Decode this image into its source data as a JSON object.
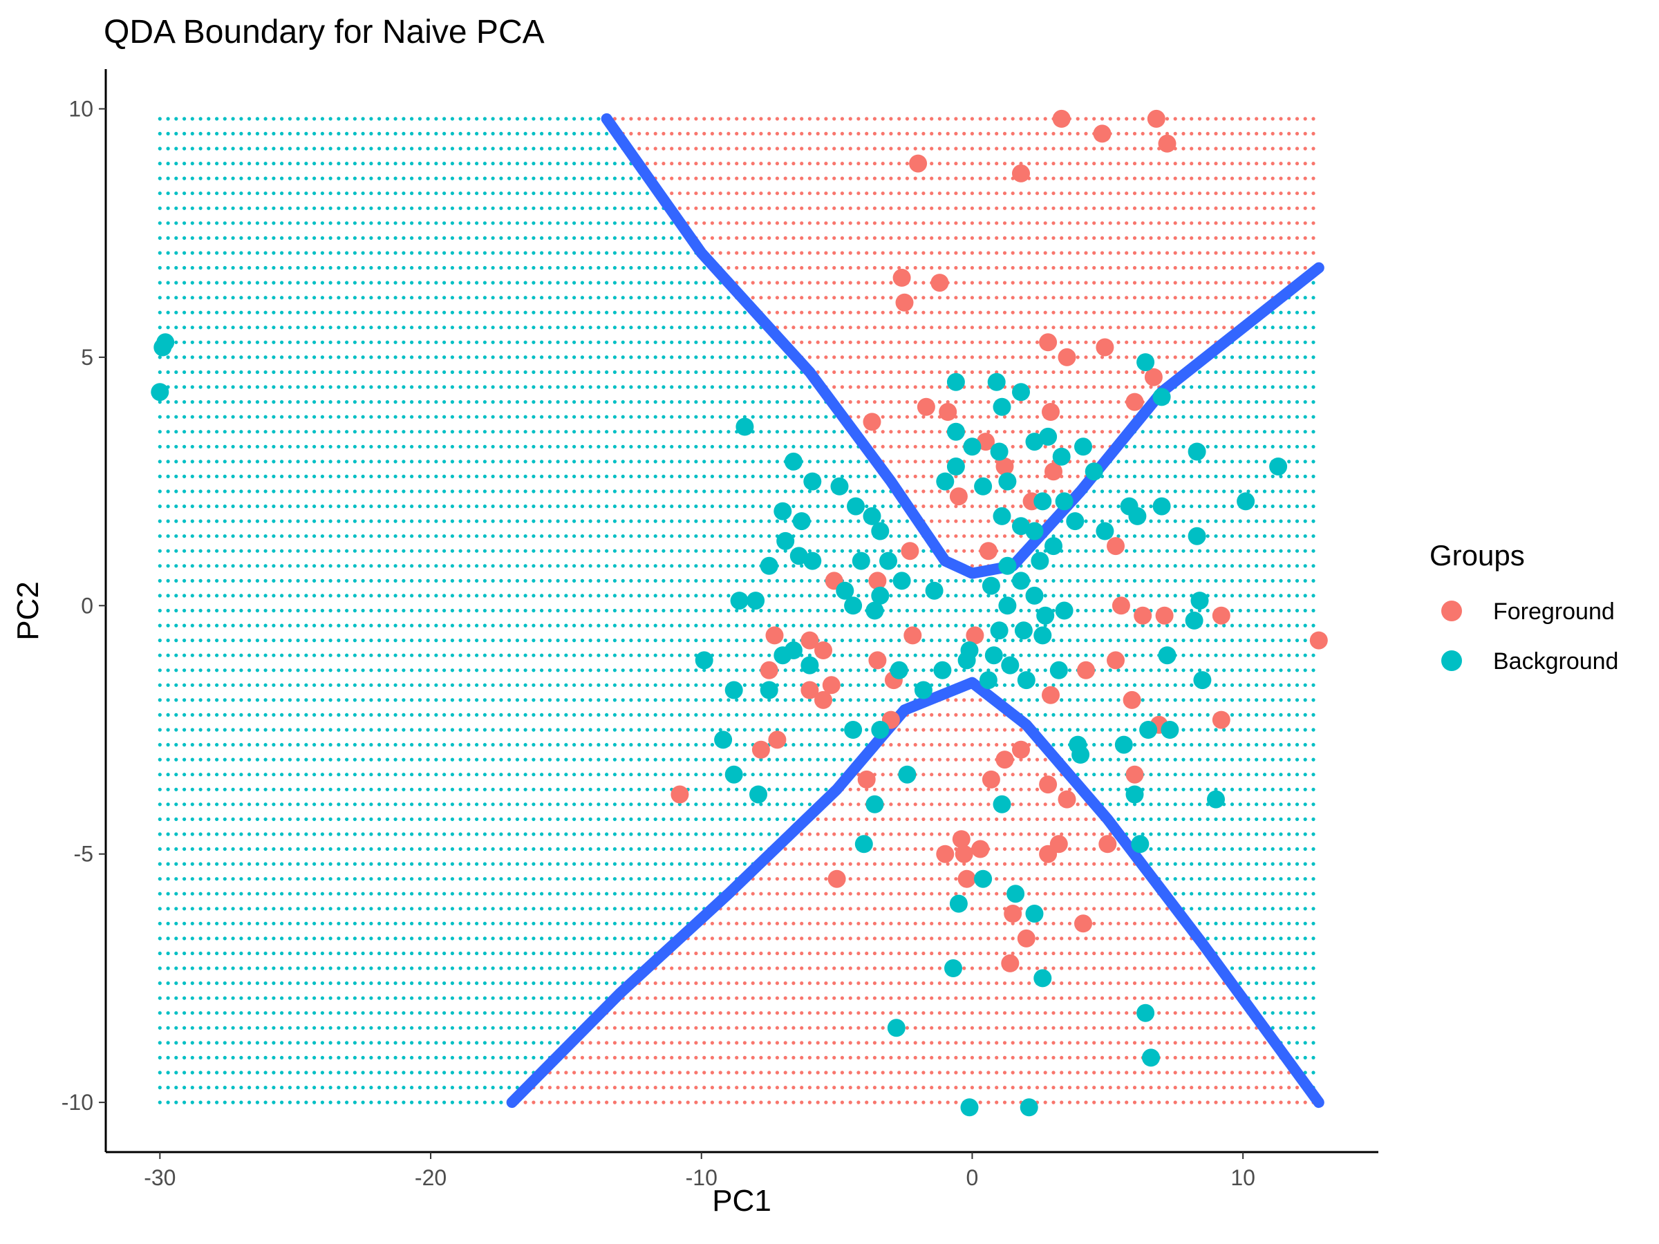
{
  "chart_data": {
    "type": "scatter",
    "title": "QDA Boundary for Naive PCA",
    "xlabel": "PC1",
    "ylabel": "PC2",
    "xlim": [
      -32,
      15
    ],
    "ylim": [
      -11,
      10.8
    ],
    "xticks": [
      -30,
      -20,
      -10,
      0,
      10
    ],
    "yticks": [
      -10,
      -5,
      0,
      5,
      10
    ],
    "xtick_labels": [
      "-30",
      "-20",
      "-10",
      "0",
      "10"
    ],
    "ytick_labels": [
      "-10",
      "-5",
      "0",
      "5",
      "10"
    ],
    "grid": false,
    "legend": {
      "title": "Groups",
      "position": "right",
      "entries": [
        {
          "label": "Foreground",
          "color": "#f8766d"
        },
        {
          "label": "Background",
          "color": "#00bfc4"
        }
      ]
    },
    "background_grid": {
      "x_range": [
        -30,
        12.8
      ],
      "y_range": [
        -10,
        9.8
      ],
      "step": 0.3,
      "rule": "QDA region: Foreground when |PC2| exceeds the boundary curve, Background otherwise"
    },
    "boundary": {
      "color": "#3366ff",
      "upper": [
        [
          -13.5,
          9.8
        ],
        [
          -10,
          7.1
        ],
        [
          -6,
          4.7
        ],
        [
          -3,
          2.5
        ],
        [
          -1,
          0.9
        ],
        [
          0,
          0.65
        ],
        [
          1.5,
          0.8
        ],
        [
          4,
          2.3
        ],
        [
          7,
          4.3
        ],
        [
          12.8,
          6.8
        ]
      ],
      "lower": [
        [
          -17,
          -10
        ],
        [
          -13,
          -7.8
        ],
        [
          -9,
          -5.8
        ],
        [
          -5,
          -3.7
        ],
        [
          -2.5,
          -2.1
        ],
        [
          0,
          -1.55
        ],
        [
          2,
          -2.4
        ],
        [
          5,
          -4.3
        ],
        [
          8.5,
          -6.8
        ],
        [
          12.8,
          -10
        ]
      ]
    },
    "series": [
      {
        "name": "Foreground",
        "color": "#f8766d",
        "points": [
          [
            3.3,
            9.8
          ],
          [
            4.8,
            9.5
          ],
          [
            6.8,
            9.8
          ],
          [
            7.2,
            9.3
          ],
          [
            -2,
            8.9
          ],
          [
            1.8,
            8.7
          ],
          [
            -2.6,
            6.6
          ],
          [
            -2.5,
            6.1
          ],
          [
            -1.2,
            6.5
          ],
          [
            3.5,
            5.0
          ],
          [
            2.8,
            5.3
          ],
          [
            4.9,
            5.2
          ],
          [
            6.7,
            4.6
          ],
          [
            -3.7,
            3.7
          ],
          [
            -1.7,
            4.0
          ],
          [
            -0.9,
            3.9
          ],
          [
            2.9,
            3.9
          ],
          [
            6.0,
            4.1
          ],
          [
            0.5,
            3.3
          ],
          [
            1.2,
            2.8
          ],
          [
            3.0,
            2.7
          ],
          [
            2.2,
            2.1
          ],
          [
            -0.5,
            2.2
          ],
          [
            5.3,
            1.2
          ],
          [
            -2.3,
            1.1
          ],
          [
            0.6,
            1.1
          ],
          [
            -3.5,
            0.5
          ],
          [
            -5.1,
            0.5
          ],
          [
            0.1,
            -0.6
          ],
          [
            5.5,
            0.0
          ],
          [
            6.3,
            -0.2
          ],
          [
            7.1,
            -0.2
          ],
          [
            9.2,
            -0.2
          ],
          [
            -6.0,
            -0.7
          ],
          [
            -7.3,
            -0.6
          ],
          [
            -5.5,
            -0.9
          ],
          [
            -7.5,
            -1.3
          ],
          [
            -2.9,
            -1.5
          ],
          [
            -5.2,
            -1.6
          ],
          [
            -6.0,
            -1.7
          ],
          [
            -5.5,
            -1.9
          ],
          [
            -3.5,
            -1.1
          ],
          [
            -2.2,
            -0.6
          ],
          [
            4.2,
            -1.3
          ],
          [
            5.3,
            -1.1
          ],
          [
            5.9,
            -1.9
          ],
          [
            9.2,
            -2.3
          ],
          [
            -3.0,
            -2.3
          ],
          [
            -7.2,
            -2.7
          ],
          [
            -7.8,
            -2.9
          ],
          [
            -10.8,
            -3.8
          ],
          [
            -3.9,
            -3.5
          ],
          [
            2.9,
            -1.8
          ],
          [
            1.8,
            -2.9
          ],
          [
            1.2,
            -3.1
          ],
          [
            0.7,
            -3.5
          ],
          [
            2.8,
            -3.6
          ],
          [
            3.5,
            -3.9
          ],
          [
            -5.0,
            -5.5
          ],
          [
            -1.0,
            -5.0
          ],
          [
            -0.4,
            -4.7
          ],
          [
            -0.3,
            -5.0
          ],
          [
            0.3,
            -4.9
          ],
          [
            2.8,
            -5.0
          ],
          [
            3.2,
            -4.8
          ],
          [
            5.0,
            -4.8
          ],
          [
            -0.2,
            -5.5
          ],
          [
            1.5,
            -6.2
          ],
          [
            2.0,
            -6.7
          ],
          [
            4.1,
            -6.4
          ],
          [
            1.4,
            -7.2
          ],
          [
            12.8,
            -0.7
          ],
          [
            6.9,
            -2.4
          ],
          [
            6.0,
            -3.4
          ]
        ]
      },
      {
        "name": "Background",
        "color": "#00bfc4",
        "points": [
          [
            -29.8,
            5.3
          ],
          [
            -29.9,
            5.2
          ],
          [
            -30.0,
            4.3
          ],
          [
            -8.4,
            3.6
          ],
          [
            6.4,
            4.9
          ],
          [
            7.0,
            4.2
          ],
          [
            -6.6,
            2.9
          ],
          [
            -5.9,
            2.5
          ],
          [
            -4.9,
            2.4
          ],
          [
            -7.0,
            1.9
          ],
          [
            -6.3,
            1.7
          ],
          [
            -6.9,
            1.3
          ],
          [
            -6.4,
            1.0
          ],
          [
            -5.9,
            0.9
          ],
          [
            -7.5,
            0.8
          ],
          [
            -4.3,
            2.0
          ],
          [
            -3.7,
            1.8
          ],
          [
            -3.4,
            1.5
          ],
          [
            -4.1,
            0.9
          ],
          [
            -3.1,
            0.9
          ],
          [
            -2.6,
            0.5
          ],
          [
            -4.7,
            0.3
          ],
          [
            -3.4,
            0.2
          ],
          [
            -4.4,
            0.0
          ],
          [
            -3.6,
            -0.1
          ],
          [
            -1.4,
            0.3
          ],
          [
            -0.6,
            4.5
          ],
          [
            0.9,
            4.5
          ],
          [
            1.8,
            4.3
          ],
          [
            1.1,
            4.0
          ],
          [
            -0.6,
            3.5
          ],
          [
            0.0,
            3.2
          ],
          [
            1.0,
            3.1
          ],
          [
            2.3,
            3.3
          ],
          [
            2.8,
            3.4
          ],
          [
            3.3,
            3.0
          ],
          [
            4.1,
            3.2
          ],
          [
            4.5,
            2.7
          ],
          [
            -0.6,
            2.8
          ],
          [
            -1.0,
            2.5
          ],
          [
            0.4,
            2.4
          ],
          [
            1.3,
            2.5
          ],
          [
            2.6,
            2.1
          ],
          [
            3.4,
            2.1
          ],
          [
            1.1,
            1.8
          ],
          [
            1.8,
            1.6
          ],
          [
            2.3,
            1.5
          ],
          [
            3.0,
            1.2
          ],
          [
            3.8,
            1.7
          ],
          [
            4.9,
            1.5
          ],
          [
            6.1,
            1.8
          ],
          [
            7.0,
            2.0
          ],
          [
            5.8,
            2.0
          ],
          [
            8.3,
            3.1
          ],
          [
            8.3,
            1.4
          ],
          [
            10.1,
            2.1
          ],
          [
            11.3,
            2.8
          ],
          [
            1.3,
            0.8
          ],
          [
            2.5,
            0.9
          ],
          [
            1.8,
            0.5
          ],
          [
            0.7,
            0.4
          ],
          [
            1.3,
            0.0
          ],
          [
            2.3,
            0.2
          ],
          [
            2.7,
            -0.2
          ],
          [
            3.4,
            -0.1
          ],
          [
            1.0,
            -0.5
          ],
          [
            1.9,
            -0.5
          ],
          [
            2.6,
            -0.6
          ],
          [
            -0.1,
            -0.9
          ],
          [
            0.8,
            -1.0
          ],
          [
            1.4,
            -1.2
          ],
          [
            0.6,
            -1.5
          ],
          [
            2.0,
            -1.5
          ],
          [
            3.2,
            -1.3
          ],
          [
            -1.1,
            -1.3
          ],
          [
            -0.2,
            -1.1
          ],
          [
            -1.8,
            -1.7
          ],
          [
            -2.7,
            -1.3
          ],
          [
            -3.4,
            -2.5
          ],
          [
            -4.4,
            -2.5
          ],
          [
            -2.4,
            -3.4
          ],
          [
            -3.6,
            -4.0
          ],
          [
            -4.0,
            -4.8
          ],
          [
            1.1,
            -4.0
          ],
          [
            3.9,
            -2.8
          ],
          [
            4.0,
            -3.0
          ],
          [
            5.6,
            -2.8
          ],
          [
            6.0,
            -3.8
          ],
          [
            6.2,
            -4.8
          ],
          [
            6.5,
            -2.5
          ],
          [
            7.3,
            -2.5
          ],
          [
            8.2,
            -0.3
          ],
          [
            8.4,
            0.1
          ],
          [
            7.2,
            -1.0
          ],
          [
            8.5,
            -1.5
          ],
          [
            9.0,
            -3.9
          ],
          [
            0.4,
            -5.5
          ],
          [
            -0.5,
            -6.0
          ],
          [
            1.6,
            -5.8
          ],
          [
            2.3,
            -6.2
          ],
          [
            -0.7,
            -7.3
          ],
          [
            2.6,
            -7.5
          ],
          [
            -2.8,
            -8.5
          ],
          [
            6.4,
            -8.2
          ],
          [
            6.6,
            -9.1
          ],
          [
            -0.1,
            -10.1
          ],
          [
            2.1,
            -10.1
          ],
          [
            -8.6,
            0.1
          ],
          [
            -8.0,
            0.1
          ],
          [
            -9.9,
            -1.1
          ],
          [
            -8.8,
            -1.7
          ],
          [
            -7.5,
            -1.7
          ],
          [
            -7.0,
            -1.0
          ],
          [
            -9.2,
            -2.7
          ],
          [
            -8.8,
            -3.4
          ],
          [
            -7.9,
            -3.8
          ],
          [
            -6.0,
            -1.2
          ],
          [
            -6.6,
            -0.9
          ]
        ]
      }
    ]
  }
}
